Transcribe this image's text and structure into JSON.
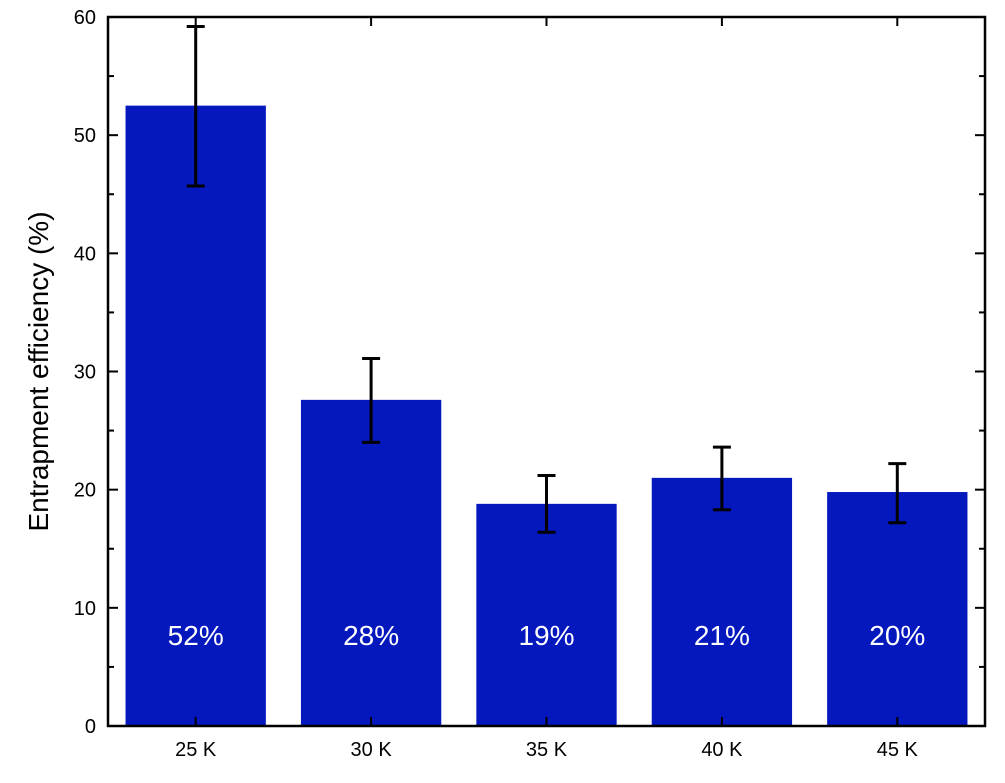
{
  "chart_data": {
    "type": "bar",
    "title": "",
    "xlabel": "",
    "ylabel": "Entrapment efficiency (%)",
    "categories": [
      "25 K",
      "30 K",
      "35 K",
      "40 K",
      "45 K"
    ],
    "values": [
      52.5,
      27.6,
      18.8,
      21.0,
      19.8
    ],
    "error_low": [
      45.7,
      24.0,
      16.4,
      18.3,
      17.2
    ],
    "error_high": [
      59.2,
      31.1,
      21.2,
      23.6,
      22.2
    ],
    "bar_labels": [
      "52%",
      "28%",
      "19%",
      "21%",
      "20%"
    ],
    "ylim": [
      0,
      60
    ],
    "yticks": [
      0,
      10,
      20,
      30,
      40,
      50,
      60
    ],
    "grid": false,
    "bar_color": "#0418BE",
    "error_color": "#000000"
  }
}
